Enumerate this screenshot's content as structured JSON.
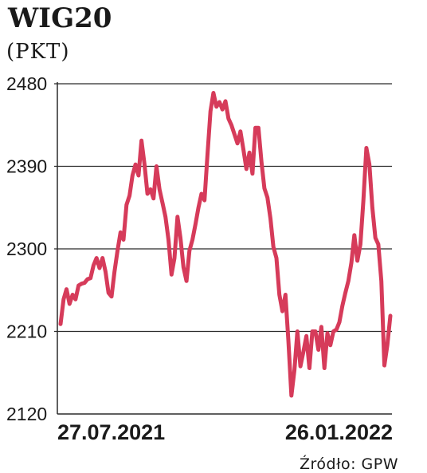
{
  "chart_data": {
    "type": "line",
    "title": "WIG20",
    "unit_label": "(PKT)",
    "source": "Źródło: GPW",
    "ylim": [
      2120,
      2480
    ],
    "yticks": [
      "2480",
      "2390",
      "2300",
      "2210",
      "2120"
    ],
    "ytick_values": [
      2480,
      2390,
      2300,
      2210,
      2120
    ],
    "grid": "horizontal",
    "xtick_labels": [
      "27.07.2021",
      "26.01.2022"
    ],
    "line_color": "#d63b5a",
    "series": [
      {
        "values": [
          2218,
          2245,
          2256,
          2240,
          2250,
          2245,
          2260,
          2262,
          2263,
          2267,
          2268,
          2282,
          2290,
          2279,
          2290,
          2275,
          2252,
          2248,
          2275,
          2298,
          2318,
          2310,
          2348,
          2358,
          2380,
          2392,
          2380,
          2418,
          2392,
          2360,
          2365,
          2355,
          2390,
          2365,
          2350,
          2335,
          2310,
          2272,
          2290,
          2335,
          2312,
          2280,
          2265,
          2298,
          2310,
          2327,
          2345,
          2360,
          2353,
          2402,
          2450,
          2470,
          2455,
          2460,
          2452,
          2461,
          2442,
          2435,
          2425,
          2415,
          2428,
          2408,
          2387,
          2405,
          2382,
          2432,
          2432,
          2395,
          2366,
          2356,
          2333,
          2302,
          2290,
          2250,
          2232,
          2250,
          2200,
          2140,
          2168,
          2210,
          2172,
          2188,
          2205,
          2170,
          2210,
          2210,
          2190,
          2215,
          2170,
          2208,
          2195,
          2210,
          2212,
          2220,
          2238,
          2252,
          2265,
          2285,
          2315,
          2287,
          2305,
          2352,
          2410,
          2392,
          2345,
          2312,
          2305,
          2265,
          2173,
          2195,
          2227
        ]
      }
    ]
  }
}
